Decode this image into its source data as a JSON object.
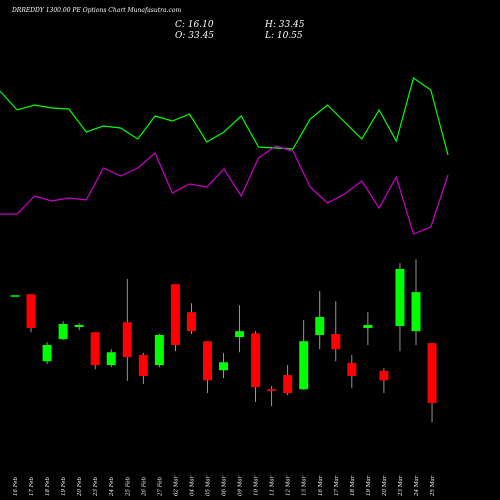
{
  "chart_data": {
    "type": "candlestick",
    "title": "DRREDDY 1300.00 PE Options Chart Munafasutra.com",
    "ohlc_labels": {
      "close": "C: 16.10",
      "high": "H: 33.45",
      "open": "O: 33.45",
      "low": "L: 10.55"
    },
    "categories": [
      "16 Feb",
      "17 Feb",
      "18 Feb",
      "19 Feb",
      "20 Feb",
      "23 Feb",
      "24 Feb",
      "25 Feb",
      "26 Feb",
      "27 Feb",
      "02 Mar",
      "04 Mar",
      "05 Mar",
      "06 Mar",
      "09 Mar",
      "10 Mar",
      "11 Mar",
      "12 Mar",
      "13 Mar",
      "16 Mar",
      "17 Mar",
      "18 Mar",
      "19 Mar",
      "20 Mar",
      "23 Mar",
      "24 Mar",
      "25 Mar"
    ],
    "open": [
      47.2,
      47.6,
      28.2,
      34.6,
      38.1,
      36.6,
      27.1,
      39.5,
      30.0,
      27.1,
      50.5,
      42.4,
      34.0,
      25.6,
      35.2,
      36.3,
      20.1,
      24.2,
      20.1,
      35.8,
      36.1,
      27.7,
      37.8,
      25.4,
      38.4,
      36.9,
      33.45
    ],
    "high": [
      47.3,
      47.6,
      33.7,
      39.8,
      39.2,
      36.6,
      31.7,
      52.0,
      30.6,
      36.1,
      50.5,
      45.0,
      34.0,
      30.6,
      44.4,
      36.9,
      21.0,
      27.1,
      40.1,
      48.5,
      45.6,
      30.0,
      42.4,
      26.2,
      56.6,
      57.7,
      33.45
    ],
    "low": [
      47.2,
      36.6,
      27.4,
      34.3,
      37.2,
      25.9,
      26.5,
      22.5,
      21.6,
      26.5,
      31.1,
      36.1,
      19.0,
      23.3,
      30.8,
      16.4,
      15.2,
      18.4,
      19.9,
      31.7,
      28.2,
      20.4,
      32.9,
      19.0,
      31.1,
      32.9,
      10.55
    ],
    "close": [
      47.3,
      37.8,
      32.9,
      39.0,
      38.7,
      27.1,
      30.8,
      29.4,
      23.9,
      35.8,
      32.9,
      36.9,
      22.7,
      27.9,
      36.9,
      20.7,
      19.6,
      19.0,
      34.0,
      41.0,
      31.7,
      23.9,
      38.7,
      22.7,
      54.9,
      48.2,
      16.1
    ],
    "up_color": "#00ff00",
    "down_color": "#ff0000",
    "ylim": [
      8.3,
      60.4
    ],
    "lines": [
      {
        "color": "#00ff00",
        "values": [
          209,
          190,
          195,
          192,
          191,
          168,
          174,
          172,
          161,
          184,
          179,
          186,
          158,
          168,
          184,
          153,
          152,
          151,
          181,
          195,
          178,
          161,
          190,
          159,
          222,
          210,
          145
        ]
      },
      {
        "color": "#cc00cc",
        "values": [
          86,
          86,
          104,
          99,
          102,
          100,
          132,
          124,
          132,
          147,
          107,
          116,
          113,
          131,
          104,
          142,
          154,
          149,
          113,
          97,
          106,
          119,
          92,
          123,
          66,
          73,
          125
        ]
      }
    ],
    "lines_ylim": [
      0,
      300
    ]
  }
}
